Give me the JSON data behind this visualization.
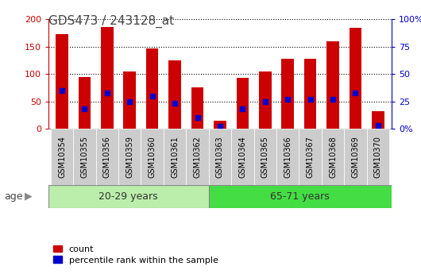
{
  "title": "GDS473 / 243128_at",
  "samples": [
    "GSM10354",
    "GSM10355",
    "GSM10356",
    "GSM10359",
    "GSM10360",
    "GSM10361",
    "GSM10362",
    "GSM10363",
    "GSM10364",
    "GSM10365",
    "GSM10366",
    "GSM10367",
    "GSM10368",
    "GSM10369",
    "GSM10370"
  ],
  "counts": [
    172,
    94,
    185,
    105,
    147,
    125,
    75,
    15,
    93,
    104,
    128,
    128,
    160,
    184,
    32
  ],
  "percentile_ranks": [
    35,
    18,
    33,
    25,
    30,
    23,
    10,
    2,
    18,
    25,
    27,
    27,
    27,
    33,
    3
  ],
  "group_labels": [
    "20-29 years",
    "65-71 years"
  ],
  "group_split": 7,
  "ylim_left": [
    0,
    200
  ],
  "ylim_right": [
    0,
    100
  ],
  "yticks_left": [
    0,
    50,
    100,
    150,
    200
  ],
  "yticks_right": [
    0,
    25,
    50,
    75,
    100
  ],
  "bar_color": "#CC0000",
  "dot_color": "#0000CC",
  "legend_count": "count",
  "legend_pct": "percentile rank within the sample",
  "left_axis_color": "#CC0000",
  "right_axis_color": "#0000CC",
  "title_color": "#444444",
  "group_color_1": "#BBEEAA",
  "group_color_2": "#44DD44",
  "group_border_color": "#888888",
  "tick_bg_color": "#CCCCCC",
  "grid_color": "#000000",
  "age_label": "age"
}
